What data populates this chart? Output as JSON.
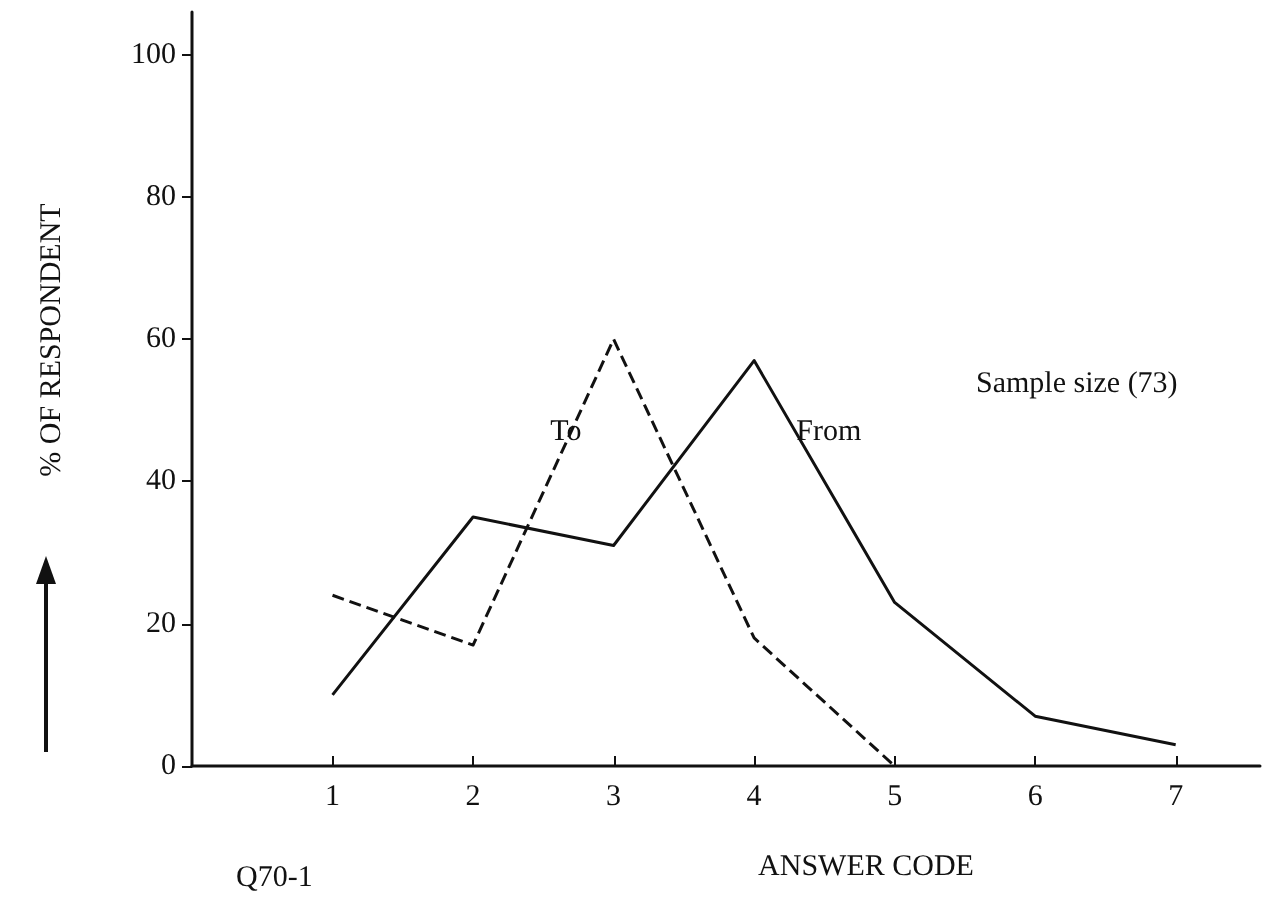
{
  "chart_data": {
    "type": "line",
    "xlabel": "ANSWER CODE",
    "ylabel": "% OF RESPONDENT",
    "x": [
      1,
      2,
      3,
      4,
      5,
      6,
      7
    ],
    "series": [
      {
        "name": "From",
        "color": "#111111",
        "line_style": "solid",
        "values": [
          10,
          35,
          31,
          57,
          23,
          7,
          3
        ]
      },
      {
        "name": "To",
        "color": "#111111",
        "line_style": "dashed",
        "values": [
          24,
          17,
          60,
          18,
          0,
          null,
          null
        ]
      }
    ],
    "xlim": [
      0,
      7.6
    ],
    "xticks": [
      1,
      2,
      3,
      4,
      5,
      6,
      7
    ],
    "ylim": [
      0,
      106
    ],
    "yticks": [
      0,
      20,
      40,
      60,
      80,
      100
    ],
    "annotations": [
      "Q70-1",
      "Sample size (73)"
    ],
    "grid": false,
    "legend": false,
    "marker": "none"
  }
}
